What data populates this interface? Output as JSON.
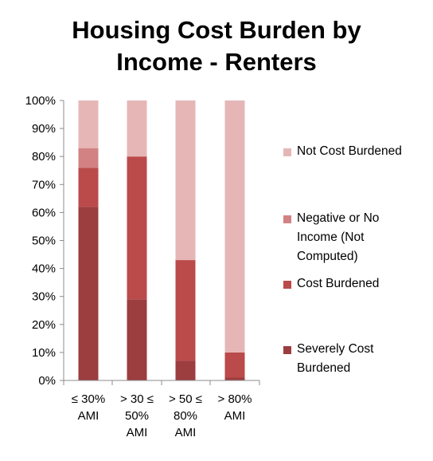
{
  "chart_data": {
    "type": "bar",
    "stacked": true,
    "title": "Housing Cost Burden by Income - Renters",
    "title_lines": [
      "Housing Cost Burden by",
      "Income - Renters"
    ],
    "categories": [
      [
        "≤ 30%",
        "AMI"
      ],
      [
        "> 30 ≤",
        "50%",
        "AMI"
      ],
      [
        "> 50 ≤",
        "80%",
        "AMI"
      ],
      [
        "> 80%",
        "AMI"
      ]
    ],
    "series": [
      {
        "name": "Severely Cost Burdened",
        "color": "#9c3d3f",
        "values": [
          62,
          29,
          7,
          1
        ]
      },
      {
        "name": "Cost Burdened",
        "color": "#bb4a4b",
        "values": [
          14,
          51,
          36,
          9
        ]
      },
      {
        "name": "Negative or No Income (Not Computed)",
        "color": "#d28283",
        "values": [
          7,
          0,
          0,
          0
        ]
      },
      {
        "name": "Not Cost Burdened",
        "color": "#e6b6b7",
        "values": [
          17,
          20,
          57,
          90
        ]
      }
    ],
    "ylim": [
      0,
      100
    ],
    "yticks": [
      "0%",
      "10%",
      "20%",
      "30%",
      "40%",
      "50%",
      "60%",
      "70%",
      "80%",
      "90%",
      "100%"
    ],
    "grid": false,
    "legend_position": "right"
  },
  "legend": {
    "items": [
      {
        "lines": [
          "Not Cost Burdened"
        ],
        "color": "#e6b6b7"
      },
      {
        "lines": [
          "Negative or No",
          "Income (Not",
          "Computed)"
        ],
        "color": "#d28283"
      },
      {
        "lines": [
          "Cost Burdened"
        ],
        "color": "#bb4a4b"
      },
      {
        "lines": [
          "Severely Cost",
          "Burdened"
        ],
        "color": "#9c3d3f"
      }
    ]
  }
}
